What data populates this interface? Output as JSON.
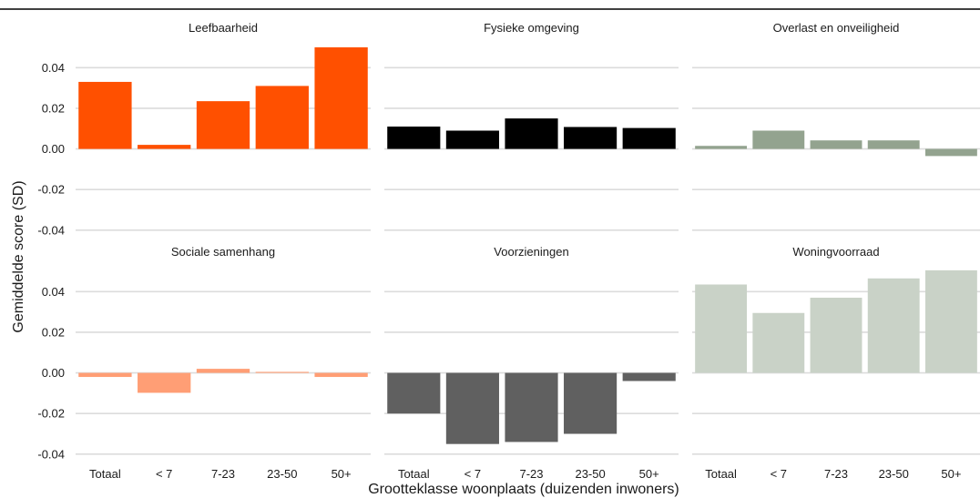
{
  "chart_data": {
    "type": "bar",
    "xlabel": "Grootteklasse woonplaats (duizenden inwoners)",
    "ylabel": "Gemiddelde score (SD)",
    "categories": [
      "Totaal",
      "< 7",
      "7-23",
      "23-50",
      "50+"
    ],
    "ylim": [
      -0.045,
      0.05
    ],
    "yticks": [
      -0.04,
      -0.02,
      0.0,
      0.02,
      0.04
    ],
    "ytick_labels": [
      "-0.04",
      "-0.02",
      "0.00",
      "0.02",
      "0.04"
    ],
    "grid": true,
    "legend": "none",
    "panels": [
      {
        "title": "Leefbaarheid",
        "color": "#ff5000",
        "values": [
          0.033,
          0.002,
          0.0235,
          0.031,
          0.05
        ]
      },
      {
        "title": "Fysieke omgeving",
        "color": "#000000",
        "values": [
          0.011,
          0.009,
          0.015,
          0.0108,
          0.0103
        ]
      },
      {
        "title": "Overlast en onveiligheid",
        "color": "#93a38f",
        "values": [
          0.0015,
          0.009,
          0.0042,
          0.0042,
          -0.0035
        ]
      },
      {
        "title": "Sociale samenhang",
        "color": "#ff9e75",
        "values": [
          -0.002,
          -0.0098,
          0.002,
          0.0005,
          -0.002
        ]
      },
      {
        "title": "Voorzieningen",
        "color": "#606060",
        "values": [
          -0.02,
          -0.035,
          -0.034,
          -0.03,
          -0.004
        ]
      },
      {
        "title": "Woningvoorraad",
        "color": "#c9d2c7",
        "values": [
          0.0435,
          0.0295,
          0.037,
          0.0465,
          0.0505
        ]
      }
    ]
  }
}
